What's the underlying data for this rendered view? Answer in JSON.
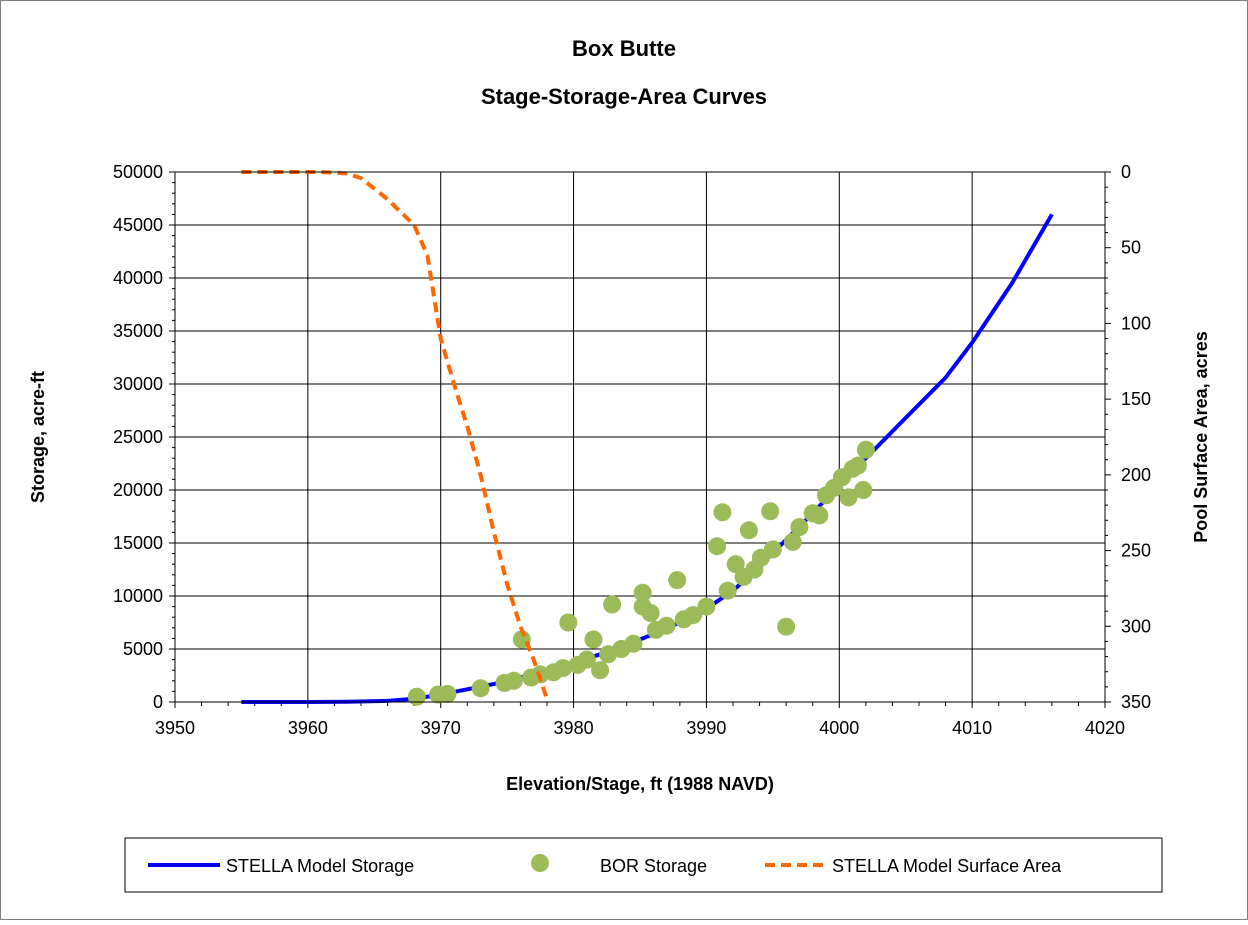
{
  "chart_data": {
    "type": "scatter",
    "title": "Box Butte",
    "subtitle": "Stage-Storage-Area Curves",
    "xlabel": "Elevation/Stage, ft (1988 NAVD)",
    "ylabel": "Storage, acre-ft",
    "y2label": "Pool Surface Area, acres",
    "xlim": [
      3950,
      4020
    ],
    "ylim": [
      0,
      50000
    ],
    "y2lim": [
      350,
      0
    ],
    "y2_inverted": true,
    "x_ticks": [
      "3950",
      "3960",
      "3970",
      "3980",
      "3990",
      "4000",
      "4010",
      "4020"
    ],
    "y_ticks": [
      "0",
      "5000",
      "10000",
      "15000",
      "20000",
      "25000",
      "30000",
      "35000",
      "40000",
      "45000",
      "50000"
    ],
    "y2_ticks": [
      "350",
      "300",
      "250",
      "200",
      "150",
      "100",
      "50",
      "0"
    ],
    "grid": true,
    "legend_position": "bottom",
    "series": [
      {
        "name": "STELLA Model Storage",
        "axis": "left",
        "style": "line",
        "color": "#0000ff",
        "points": [
          [
            3955,
            0
          ],
          [
            3960,
            0
          ],
          [
            3963,
            20
          ],
          [
            3966,
            100
          ],
          [
            3968,
            300
          ],
          [
            3970,
            700
          ],
          [
            3972,
            1200
          ],
          [
            3974,
            1700
          ],
          [
            3976,
            2300
          ],
          [
            3978,
            3000
          ],
          [
            3980,
            3700
          ],
          [
            3982,
            4500
          ],
          [
            3984,
            5400
          ],
          [
            3986,
            6400
          ],
          [
            3988,
            7500
          ],
          [
            3990,
            8800
          ],
          [
            3992,
            10500
          ],
          [
            3994,
            12800
          ],
          [
            3996,
            15300
          ],
          [
            3998,
            17800
          ],
          [
            4000,
            20500
          ],
          [
            4002,
            23000
          ],
          [
            4005,
            26800
          ],
          [
            4008,
            30600
          ],
          [
            4010,
            33900
          ],
          [
            4013,
            39500
          ],
          [
            4016,
            46000
          ]
        ]
      },
      {
        "name": "BOR Storage",
        "axis": "left",
        "style": "markers",
        "color": "#9bbb59",
        "points": [
          [
            3968.2,
            500
          ],
          [
            3969.8,
            700
          ],
          [
            3970.5,
            750
          ],
          [
            3973,
            1300
          ],
          [
            3974.8,
            1800
          ],
          [
            3975.5,
            2000
          ],
          [
            3976.1,
            5900
          ],
          [
            3976.8,
            2300
          ],
          [
            3977.5,
            2600
          ],
          [
            3978.5,
            2800
          ],
          [
            3979.2,
            3200
          ],
          [
            3979.6,
            7500
          ],
          [
            3980.3,
            3500
          ],
          [
            3981,
            4000
          ],
          [
            3981.5,
            5900
          ],
          [
            3982,
            3000
          ],
          [
            3982.6,
            4500
          ],
          [
            3982.9,
            9200
          ],
          [
            3983.6,
            5000
          ],
          [
            3984.5,
            5500
          ],
          [
            3985.2,
            10300
          ],
          [
            3985.2,
            9000
          ],
          [
            3985.8,
            8400
          ],
          [
            3986.2,
            6800
          ],
          [
            3987,
            7200
          ],
          [
            3987.8,
            11500
          ],
          [
            3988.3,
            7800
          ],
          [
            3989,
            8200
          ],
          [
            3990,
            9000
          ],
          [
            3990.8,
            14700
          ],
          [
            3991.2,
            17900
          ],
          [
            3991.6,
            10500
          ],
          [
            3992.2,
            13000
          ],
          [
            3992.8,
            11800
          ],
          [
            3993.2,
            16200
          ],
          [
            3993.6,
            12500
          ],
          [
            3994.1,
            13600
          ],
          [
            3994.8,
            18000
          ],
          [
            3995,
            14400
          ],
          [
            3996,
            7100
          ],
          [
            3996.5,
            15100
          ],
          [
            3997,
            16500
          ],
          [
            3998,
            17800
          ],
          [
            3998.5,
            17600
          ],
          [
            3999,
            19500
          ],
          [
            3999.6,
            20200
          ],
          [
            4000.2,
            21200
          ],
          [
            4000.7,
            19300
          ],
          [
            4001,
            22000
          ],
          [
            4001.4,
            22300
          ],
          [
            4001.8,
            20000
          ],
          [
            4002,
            23800
          ]
        ]
      },
      {
        "name": "STELLA Model Surface Area",
        "axis": "right",
        "style": "dashed-line",
        "color": "#ff6600",
        "points": [
          [
            3955,
            0
          ],
          [
            3958,
            0
          ],
          [
            3961,
            0
          ],
          [
            3963,
            1
          ],
          [
            3964,
            4
          ],
          [
            3966,
            18
          ],
          [
            3968,
            35
          ],
          [
            3969,
            55
          ],
          [
            3970,
            110
          ],
          [
            3971,
            140
          ],
          [
            3972,
            168
          ],
          [
            3973,
            200
          ],
          [
            3974,
            238
          ],
          [
            3975,
            272
          ],
          [
            3976,
            300
          ],
          [
            3977,
            322
          ],
          [
            3978,
            348
          ]
        ]
      }
    ]
  }
}
